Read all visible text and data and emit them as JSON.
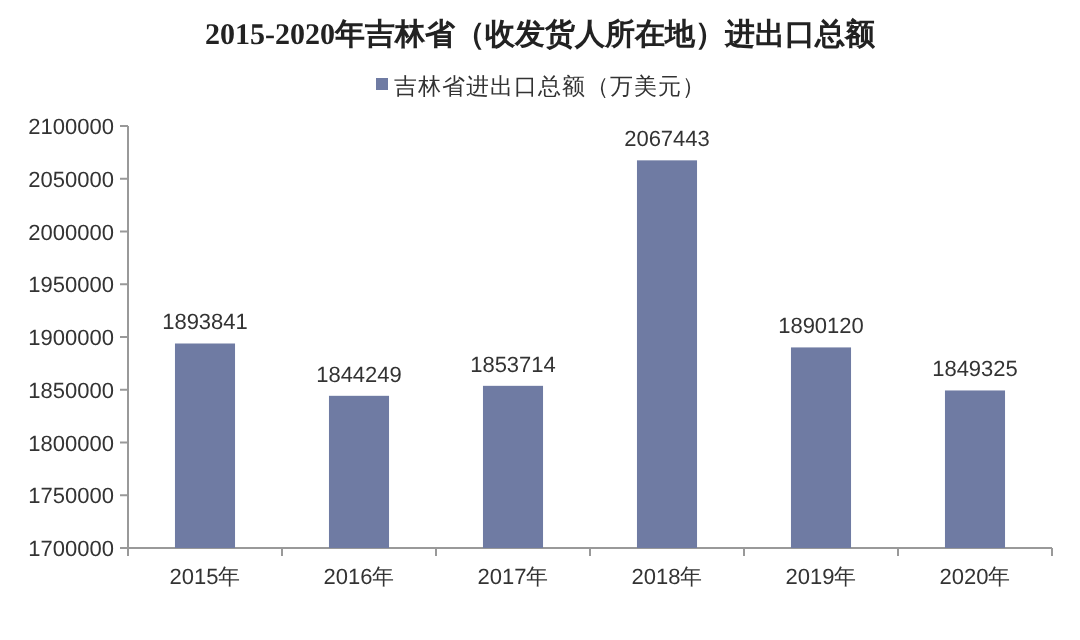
{
  "chart_data": {
    "type": "bar",
    "title": "2015-2020年吉林省（收发货人所在地）进出口总额",
    "categories": [
      "2015年",
      "2016年",
      "2017年",
      "2018年",
      "2019年",
      "2020年"
    ],
    "series": [
      {
        "name": "吉林省进出口总额（万美元）",
        "color": "#6f7ba3",
        "values": [
          1893841,
          1844249,
          1853714,
          2067443,
          1890120,
          1849325
        ]
      }
    ],
    "ylim": [
      1700000,
      2100000
    ],
    "yticks": [
      1700000,
      1750000,
      1800000,
      1850000,
      1900000,
      1950000,
      2000000,
      2050000,
      2100000
    ],
    "data_labels": true,
    "legend": "top",
    "grid": false
  }
}
